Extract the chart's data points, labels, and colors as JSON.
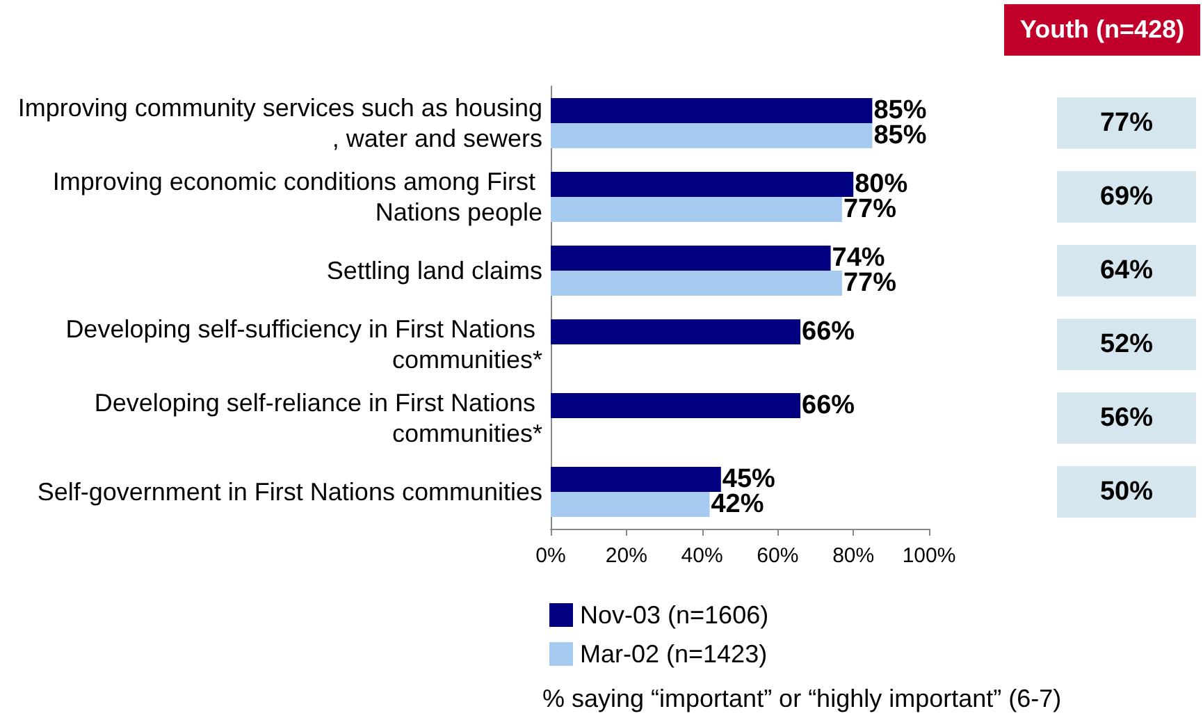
{
  "chart_data": [
    {
      "type": "bar",
      "orientation": "horizontal",
      "categories": [
        "Improving community services such as housing, water and sewers",
        "Improving economic conditions among First Nations people",
        "Settling land claims",
        "Developing self-sufficiency in First Nations communities*",
        "Developing self-reliance in First Nations communities*",
        "Self-government in First Nations communities"
      ],
      "series": [
        {
          "name": "Nov-03 (n=1606)",
          "color": "#000080",
          "values": [
            85,
            80,
            74,
            66,
            66,
            45
          ]
        },
        {
          "name": "Mar-02 (n=1423)",
          "color": "#a6caf0",
          "values": [
            85,
            77,
            77,
            null,
            null,
            42
          ]
        }
      ],
      "xlim": [
        0,
        100
      ],
      "xticks": [
        {
          "value": 0,
          "label": "0%"
        },
        {
          "value": 20,
          "label": "20%"
        },
        {
          "value": 40,
          "label": "40%"
        },
        {
          "value": 60,
          "label": "60%"
        },
        {
          "value": 80,
          "label": "80%"
        },
        {
          "value": 100,
          "label": "100%"
        }
      ],
      "value_labels": [
        [
          "85%",
          "80%",
          "74%",
          "66%",
          "66%",
          "45%"
        ],
        [
          "85%",
          "77%",
          "77%",
          null,
          null,
          "42%"
        ]
      ],
      "xlabel": "% saying “important” or “highly important” (6-7)",
      "legend": "bottom",
      "grid": false
    },
    {
      "type": "other",
      "title": "Youth (n=428)",
      "annotations": [
        "77%",
        "69%",
        "64%",
        "52%",
        "56%",
        "50%"
      ]
    }
  ]
}
